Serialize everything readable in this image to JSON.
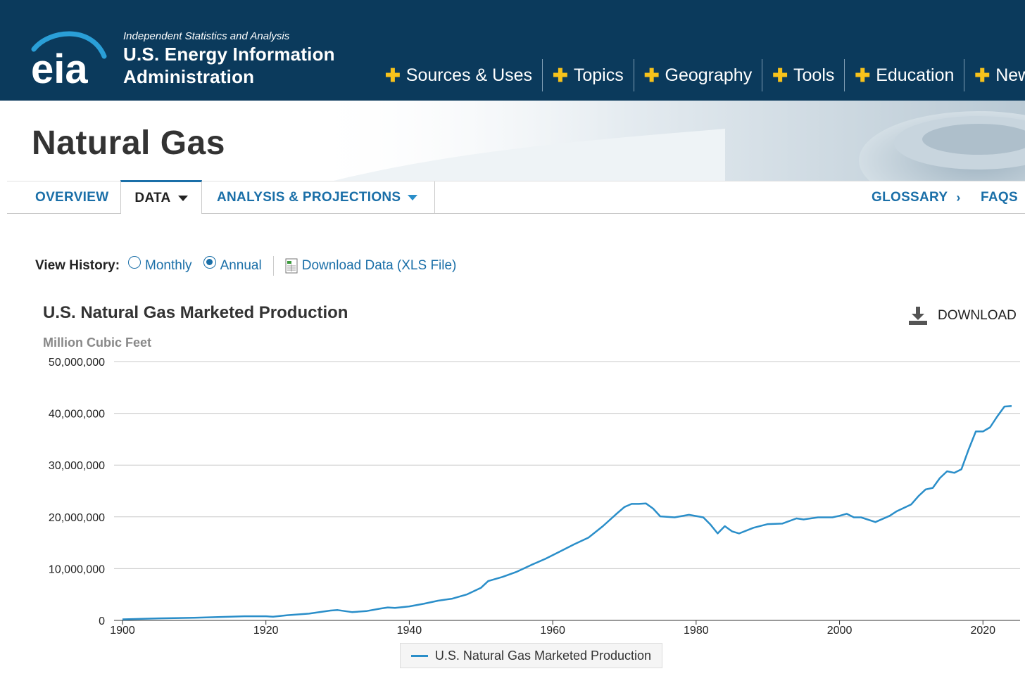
{
  "header": {
    "tagline": "Independent Statistics and Analysis",
    "agency_line1": "U.S. Energy Information",
    "agency_line2": "Administration",
    "logo_text": "eia",
    "nav": [
      {
        "label": "Sources & Uses"
      },
      {
        "label": "Topics"
      },
      {
        "label": "Geography"
      },
      {
        "label": "Tools"
      },
      {
        "label": "Education"
      },
      {
        "label": "News"
      }
    ]
  },
  "page": {
    "title": "Natural Gas"
  },
  "tabs": {
    "overview": "OVERVIEW",
    "data": "DATA",
    "analysis": "ANALYSIS & PROJECTIONS",
    "glossary": "GLOSSARY",
    "faqs": "FAQS",
    "chevron": "›"
  },
  "history": {
    "label": "View History:",
    "monthly": "Monthly",
    "annual": "Annual",
    "selected": "Annual",
    "download_link": "Download Data (XLS File)"
  },
  "download_button": "DOWNLOAD",
  "colors": {
    "header_bg": "#0b3a5c",
    "accent_plus": "#f7c21b",
    "link": "#1a6fa8",
    "series_line": "#2a8ec9"
  },
  "chart_data": {
    "type": "line",
    "title": "U.S. Natural Gas Marketed Production",
    "unit_label": "Million Cubic Feet",
    "ylim": [
      0,
      50000000
    ],
    "xlim": [
      1900,
      2024
    ],
    "y_ticks": [
      "0",
      "10,000,000",
      "20,000,000",
      "30,000,000",
      "40,000,000",
      "50,000,000"
    ],
    "x_ticks": [
      "1900",
      "1920",
      "1940",
      "1960",
      "1980",
      "2000",
      "2020"
    ],
    "grid": true,
    "legend_position": "bottom-center",
    "series": [
      {
        "name": "U.S. Natural Gas Marketed Production",
        "x": [
          1900,
          1905,
          1910,
          1915,
          1917,
          1920,
          1921,
          1923,
          1926,
          1929,
          1930,
          1932,
          1934,
          1936,
          1937,
          1938,
          1940,
          1942,
          1944,
          1946,
          1948,
          1950,
          1951,
          1953,
          1955,
          1957,
          1959,
          1961,
          1963,
          1965,
          1967,
          1969,
          1970,
          1971,
          1972,
          1973,
          1974,
          1975,
          1977,
          1979,
          1981,
          1982,
          1983,
          1984,
          1985,
          1986,
          1988,
          1990,
          1992,
          1994,
          1995,
          1997,
          1999,
          2000,
          2001,
          2002,
          2003,
          2005,
          2007,
          2008,
          2010,
          2011,
          2012,
          2013,
          2014,
          2015,
          2016,
          2017,
          2018,
          2019,
          2020,
          2021,
          2022,
          2023,
          2024
        ],
        "y": [
          200000,
          400000,
          500000,
          700000,
          800000,
          800000,
          700000,
          1000000,
          1300000,
          1900000,
          2000000,
          1600000,
          1800000,
          2300000,
          2500000,
          2400000,
          2700000,
          3200000,
          3800000,
          4200000,
          5000000,
          6300000,
          7600000,
          8400000,
          9400000,
          10700000,
          11900000,
          13300000,
          14700000,
          16000000,
          18200000,
          20700000,
          21900000,
          22500000,
          22500000,
          22600000,
          21600000,
          20100000,
          19900000,
          20400000,
          19900000,
          18500000,
          16800000,
          18200000,
          17200000,
          16800000,
          17900000,
          18600000,
          18700000,
          19700000,
          19500000,
          19900000,
          19900000,
          20200000,
          20600000,
          19900000,
          19900000,
          19000000,
          20200000,
          21100000,
          22400000,
          24000000,
          25300000,
          25600000,
          27500000,
          28800000,
          28500000,
          29200000,
          33000000,
          36500000,
          36500000,
          37300000,
          39400000,
          41300000,
          41400000
        ]
      }
    ]
  }
}
